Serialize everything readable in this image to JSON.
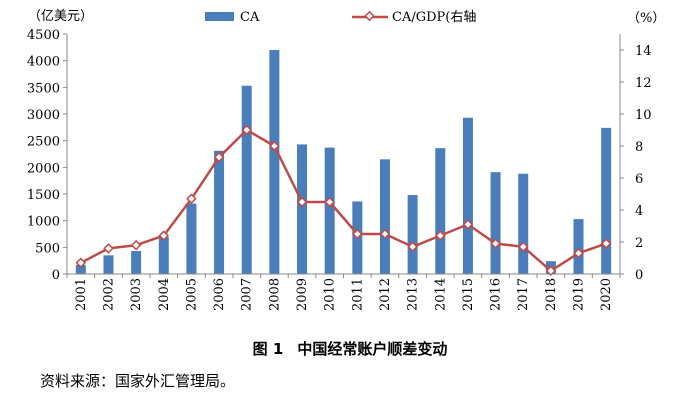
{
  "chart_data": {
    "type": "bar+line",
    "categories": [
      "2001",
      "2002",
      "2003",
      "2004",
      "2005",
      "2006",
      "2007",
      "2008",
      "2009",
      "2010",
      "2011",
      "2012",
      "2013",
      "2014",
      "2015",
      "2016",
      "2017",
      "2018",
      "2019",
      "2020"
    ],
    "series": [
      {
        "name": "CA",
        "type": "bar",
        "axis": "left",
        "color": "#4a7ebb",
        "values": [
          170,
          350,
          430,
          690,
          1320,
          2310,
          3530,
          4200,
          2430,
          2370,
          1360,
          2150,
          1480,
          2360,
          2930,
          1910,
          1880,
          240,
          1030,
          2740
        ]
      },
      {
        "name": "CA/GDP(右轴",
        "type": "line",
        "axis": "right",
        "color": "#be4b48",
        "values": [
          0.7,
          1.6,
          1.8,
          2.4,
          4.7,
          7.3,
          9.0,
          8.0,
          4.5,
          4.5,
          2.5,
          2.5,
          1.7,
          2.4,
          3.1,
          1.9,
          1.7,
          0.2,
          1.3,
          1.9
        ]
      }
    ],
    "yleft": {
      "label": "（亿美元）",
      "ylim": [
        0,
        4500
      ],
      "ticks": [
        0,
        500,
        1000,
        1500,
        2000,
        2500,
        3000,
        3500,
        4000,
        4500
      ]
    },
    "yright": {
      "label": "（%）",
      "ylim": [
        0,
        15
      ],
      "ticks": [
        0,
        2,
        4,
        6,
        8,
        10,
        12,
        14
      ]
    },
    "legend": {
      "placement": "top",
      "bar_label": "CA",
      "line_label": "CA/GDP(右轴"
    }
  },
  "caption": {
    "number": "图 1",
    "text": "中国经常账户顺差变动"
  },
  "source": "资料来源：国家外汇管理局。"
}
